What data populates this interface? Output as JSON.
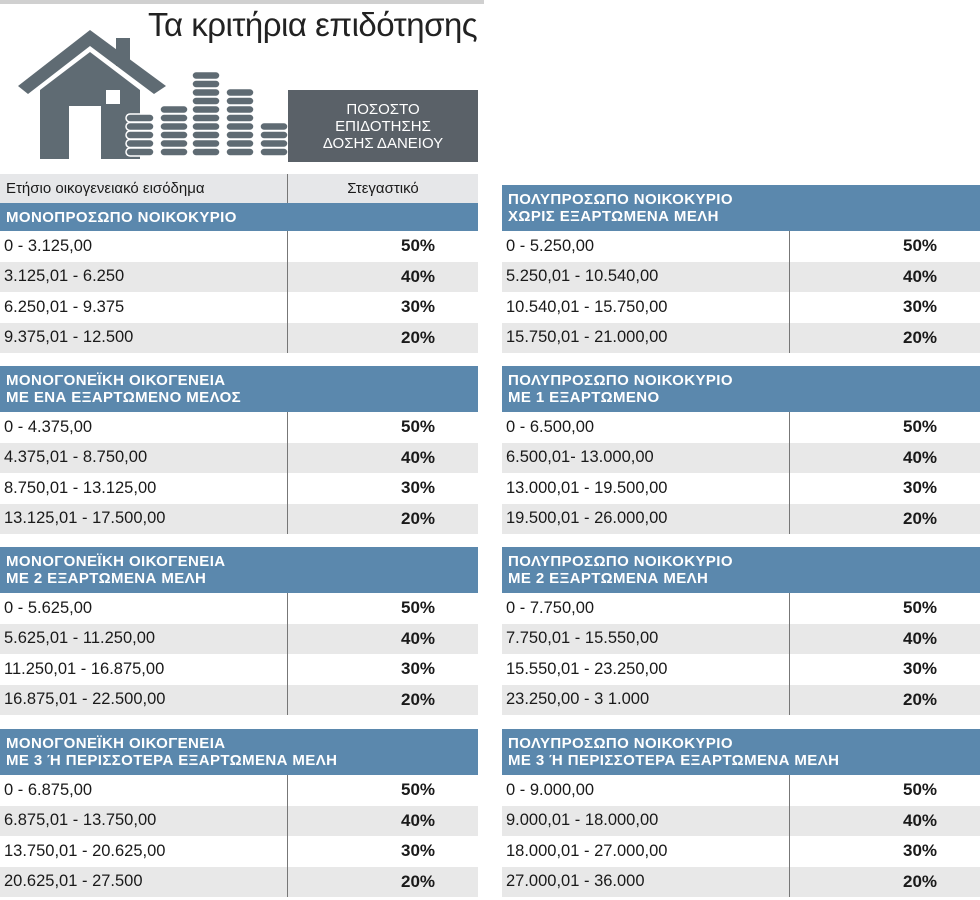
{
  "title": "Τα κριτήρια επιδότησης",
  "label_box": [
    "ΠΟΣΟΣΤΟ",
    "ΕΠΙΔΟΤΗΣΗΣ",
    "ΔΟΣΗΣ ΔΑΝΕΙΟΥ"
  ],
  "column_headers": {
    "income": "Ετήσιο οικογενειακό εισόδημα",
    "loan": "Στεγαστικό"
  },
  "colors": {
    "section_header": "#5b88ad",
    "label_box": "#5a6168",
    "icon": "#5f6b73"
  },
  "icons": [
    "house-icon",
    "coins-icon"
  ],
  "left_sections": [
    {
      "header": [
        "ΜΟΝΟΠΡΟΣΩΠΟ ΝΟΙΚΟΚΥΡΙΟ"
      ],
      "rows": [
        {
          "range": "0 - 3.125,00",
          "pct": "50%"
        },
        {
          "range": "3.125,01 - 6.250",
          "pct": "40%"
        },
        {
          "range": "6.250,01 - 9.375",
          "pct": "30%"
        },
        {
          "range": "9.375,01 - 12.500",
          "pct": "20%"
        }
      ]
    },
    {
      "header": [
        "ΜΟΝΟΓΟΝΕΪΚΗ  ΟΙΚΟΓΕΝΕΙΑ",
        "ΜΕ ΕΝΑ ΕΞΑΡΤΩΜΕΝΟ ΜΕΛΟΣ"
      ],
      "rows": [
        {
          "range": "0 - 4.375,00",
          "pct": "50%"
        },
        {
          "range": "4.375,01 - 8.750,00",
          "pct": "40%"
        },
        {
          "range": "8.750,01 - 13.125,00",
          "pct": "30%"
        },
        {
          "range": "13.125,01 - 17.500,00",
          "pct": "20%"
        }
      ]
    },
    {
      "header": [
        "ΜΟΝΟΓΟΝΕΪΚΗ  ΟΙΚΟΓΕΝΕΙΑ",
        "ΜΕ 2 ΕΞΑΡΤΩΜΕΝΑ ΜΕΛΗ"
      ],
      "rows": [
        {
          "range": "0 - 5.625,00",
          "pct": "50%"
        },
        {
          "range": "5.625,01 - 11.250,00",
          "pct": "40%"
        },
        {
          "range": "11.250,01 - 16.875,00",
          "pct": "30%"
        },
        {
          "range": "16.875,01 - 22.500,00",
          "pct": "20%"
        }
      ]
    },
    {
      "header": [
        "ΜΟΝΟΓΟΝΕΪΚΗ  ΟΙΚΟΓΕΝΕΙΑ",
        "ΜΕ 3 Ή ΠΕΡΙΣΣΟΤΕΡΑ ΕΞΑΡΤΩΜΕΝΑ ΜΕΛΗ"
      ],
      "rows": [
        {
          "range": "0 - 6.875,00",
          "pct": "50%"
        },
        {
          "range": "6.875,01 - 13.750,00",
          "pct": "40%"
        },
        {
          "range": "13.750,01 - 20.625,00",
          "pct": "30%"
        },
        {
          "range": "20.625,01 - 27.500",
          "pct": "20%"
        }
      ]
    }
  ],
  "right_sections": [
    {
      "header": [
        "ΠΟΛΥΠΡΟΣΩΠΟ ΝΟΙΚΟΚΥΡΙΟ",
        "ΧΩΡΙΣ ΕΞΑΡΤΩΜΕΝΑ ΜΕΛΗ"
      ],
      "rows": [
        {
          "range": "0 - 5.250,00",
          "pct": "50%"
        },
        {
          "range": "5.250,01 - 10.540,00",
          "pct": "40%"
        },
        {
          "range": "10.540,01 - 15.750,00",
          "pct": "30%"
        },
        {
          "range": "15.750,01 - 21.000,00",
          "pct": "20%"
        }
      ]
    },
    {
      "header": [
        "ΠΟΛΥΠΡΟΣΩΠΟ ΝΟΙΚΟΚΥΡΙΟ",
        "ΜΕ 1 ΕΞΑΡΤΩΜΕΝΟ"
      ],
      "rows": [
        {
          "range": "0 - 6.500,00",
          "pct": "50%"
        },
        {
          "range": "6.500,01- 13.000,00",
          "pct": "40%"
        },
        {
          "range": "13.000,01 - 19.500,00",
          "pct": "30%"
        },
        {
          "range": "19.500,01 - 26.000,00",
          "pct": "20%"
        }
      ]
    },
    {
      "header": [
        "ΠΟΛΥΠΡΟΣΩΠΟ ΝΟΙΚΟΚΥΡΙΟ",
        "ΜΕ 2 ΕΞΑΡΤΩΜΕΝΑ ΜΕΛΗ"
      ],
      "rows": [
        {
          "range": "0 - 7.750,00",
          "pct": "50%"
        },
        {
          "range": "7.750,01 - 15.550,00",
          "pct": "40%"
        },
        {
          "range": "15.550,01 - 23.250,00",
          "pct": "30%"
        },
        {
          "range": "23.250,00 - 3 1.000",
          "pct": "20%"
        }
      ]
    },
    {
      "header": [
        "ΠΟΛΥΠΡΟΣΩΠΟ ΝΟΙΚΟΚΥΡΙΟ",
        "ΜΕ 3 Ή ΠΕΡΙΣΣΟΤΕΡΑ ΕΞΑΡΤΩΜΕΝΑ ΜΕΛΗ"
      ],
      "rows": [
        {
          "range": "0 - 9.000,00",
          "pct": "50%"
        },
        {
          "range": "9.000,01 - 18.000,00",
          "pct": "40%"
        },
        {
          "range": "18.000,01 - 27.000,00",
          "pct": "30%"
        },
        {
          "range": "27.000,01 - 36.000",
          "pct": "20%"
        }
      ]
    }
  ]
}
